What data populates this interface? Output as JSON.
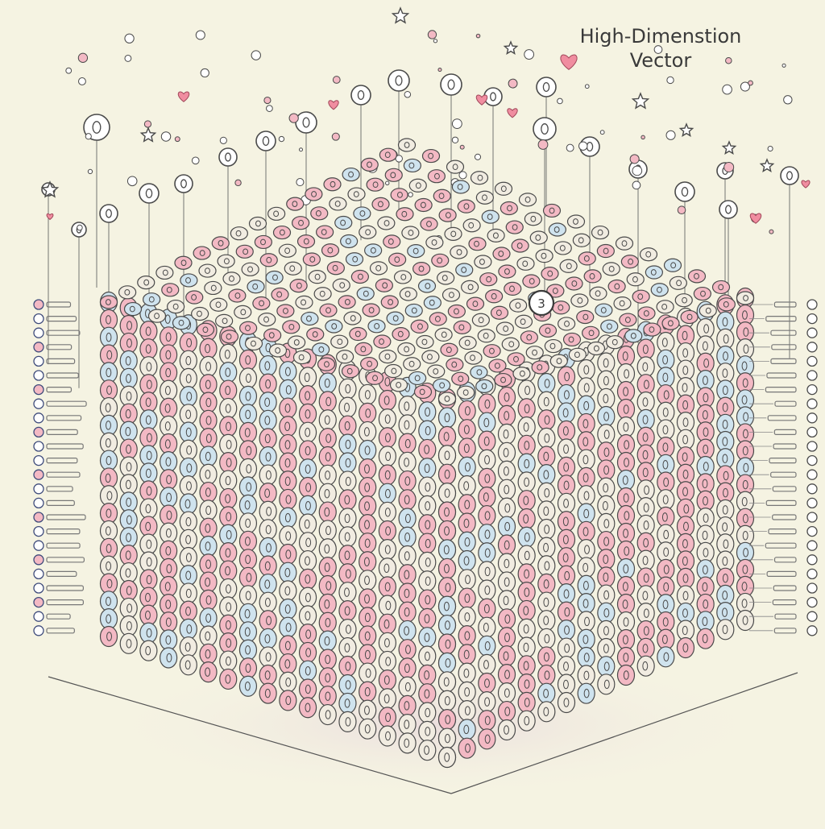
{
  "title": {
    "line1": "High-Dimenstion",
    "line2": "Vector"
  },
  "highlight_label": "3",
  "colors": {
    "background": "#f5f3e2",
    "ink": "#4a4a4a",
    "pink": "#f3b9c4",
    "blue": "#cfe3ee",
    "cream": "#f1ece1",
    "heart": "#f08da0"
  },
  "icons": [
    "heart-icon",
    "star-icon",
    "circle-node-icon"
  ]
}
